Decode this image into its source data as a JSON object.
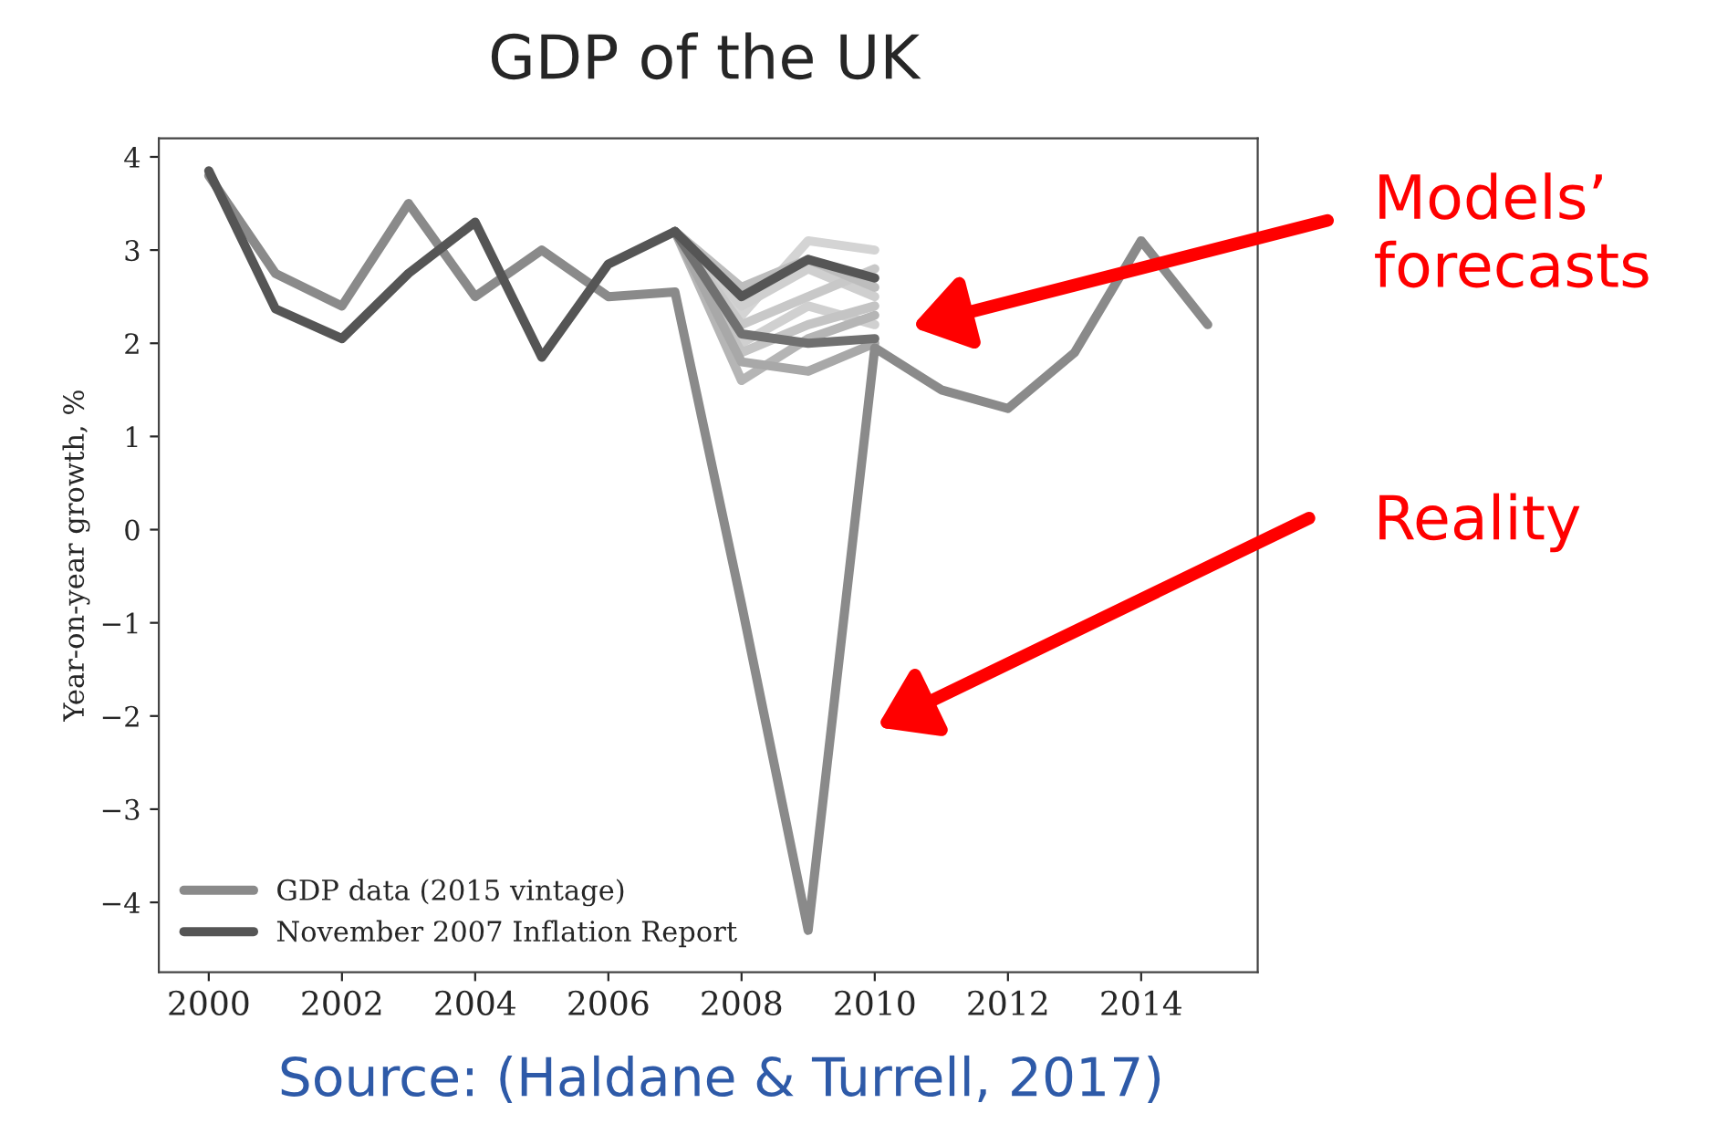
{
  "chart_data": {
    "type": "line",
    "title": "GDP of the UK",
    "ylabel": "Year-on-year growth, %",
    "x": [
      2000,
      2001,
      2002,
      2003,
      2004,
      2005,
      2006,
      2007,
      2008,
      2009,
      2010,
      2011,
      2012,
      2013,
      2014,
      2015
    ],
    "series": [
      {
        "x": [
          2007,
          2008,
          2009,
          2010
        ],
        "color": "#d4d4d4",
        "values": [
          3.2,
          2.3,
          3.1,
          3.0
        ]
      },
      {
        "x": [
          2007,
          2008,
          2009,
          2010
        ],
        "color": "#cfcfcf",
        "values": [
          3.2,
          2.4,
          2.8,
          2.5
        ]
      },
      {
        "x": [
          2007,
          2008,
          2009,
          2010
        ],
        "color": "#c8c8c8",
        "values": [
          3.2,
          2.2,
          2.5,
          2.8
        ]
      },
      {
        "x": [
          2007,
          2008,
          2009,
          2010
        ],
        "color": "#d0d0d0",
        "values": [
          3.2,
          2.0,
          2.4,
          2.2
        ]
      },
      {
        "x": [
          2007,
          2008,
          2009,
          2010
        ],
        "color": "#bdbdbd",
        "values": [
          3.2,
          2.6,
          2.9,
          2.6
        ]
      },
      {
        "x": [
          2007,
          2008,
          2009,
          2010
        ],
        "color": "#c4c4c4",
        "values": [
          3.2,
          1.9,
          2.2,
          2.4
        ]
      },
      {
        "x": [
          2007,
          2008,
          2009,
          2010
        ],
        "color": "#b5b5b5",
        "values": [
          3.2,
          1.6,
          2.05,
          2.3
        ]
      },
      {
        "x": [
          2007,
          2008,
          2009,
          2010
        ],
        "color": "#a8a8a8",
        "values": [
          3.2,
          1.8,
          1.7,
          2.0
        ]
      },
      {
        "x": [
          2007,
          2008,
          2009,
          2010
        ],
        "color": "#707070",
        "values": [
          3.2,
          2.1,
          2.0,
          2.05
        ]
      },
      {
        "name": "GDP data (2015 vintage)",
        "color": "#8a8a8a",
        "values": [
          3.8,
          2.75,
          2.4,
          3.5,
          2.5,
          3.0,
          2.5,
          2.55,
          -0.8,
          -4.3,
          1.95,
          1.5,
          1.3,
          1.9,
          3.1,
          2.2
        ]
      },
      {
        "name": "November 2007 Inflation Report",
        "color": "#555555",
        "x": [
          2000,
          2001,
          2002,
          2003,
          2004,
          2005,
          2006,
          2007,
          2008,
          2009,
          2010
        ],
        "values": [
          3.85,
          2.37,
          2.05,
          2.75,
          3.3,
          1.85,
          2.85,
          3.2,
          2.5,
          2.9,
          2.7
        ]
      }
    ],
    "xlim": [
      1999.25,
      2015.75
    ],
    "xticks": [
      2000,
      2002,
      2004,
      2006,
      2008,
      2010,
      2012,
      2014
    ],
    "ylim": [
      -4.75,
      4.2
    ],
    "yticks": [
      {
        "value": -4,
        "label": "−4"
      },
      {
        "value": -3,
        "label": "−3"
      },
      {
        "value": -2,
        "label": "−2"
      },
      {
        "value": -1,
        "label": "−1"
      },
      0,
      1,
      2,
      3,
      4
    ],
    "grid": false,
    "legend": "bottom left",
    "marker": "none",
    "line_style": "solid",
    "annotations": [
      "Models’\nforecasts",
      "Reality",
      "Source: (Haldane & Turrell, 2017)"
    ]
  }
}
